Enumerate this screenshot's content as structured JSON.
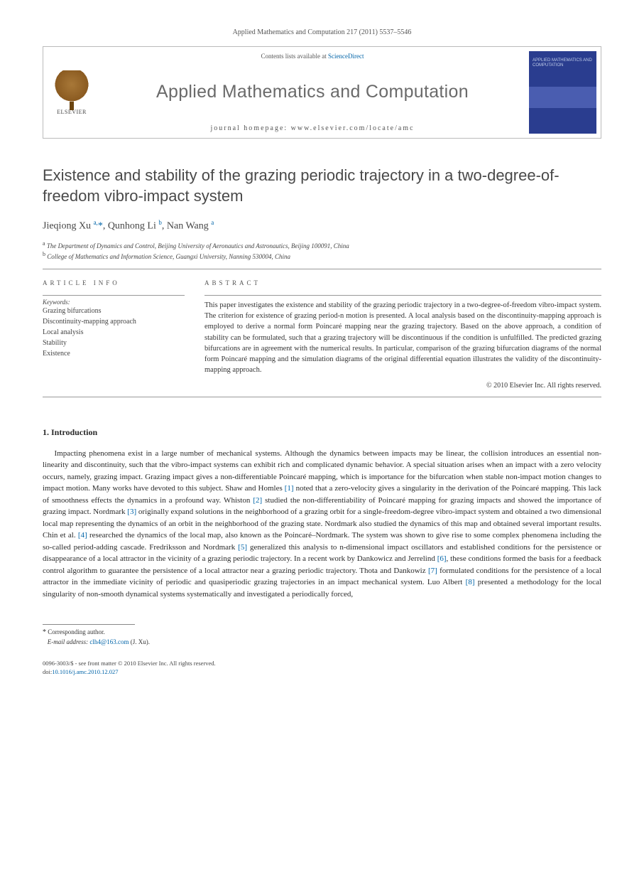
{
  "header": {
    "citation": "Applied Mathematics and Computation 217 (2011) 5537–5546",
    "contents_prefix": "Contents lists available at ",
    "contents_link": "ScienceDirect",
    "journal_name": "Applied Mathematics and Computation",
    "homepage_label": "journal homepage: www.elsevier.com/locate/amc",
    "publisher": "ELSEVIER",
    "cover_text": "APPLIED MATHEMATICS AND COMPUTATION"
  },
  "article": {
    "title": "Existence and stability of the grazing periodic trajectory in a two-degree-of-freedom vibro-impact system",
    "authors_html": "Jieqiong Xu <sup>a,</sup><span class='corr'>*</span>, Qunhong Li <sup>b</sup>, Nan Wang <sup>a</sup>",
    "affiliations": {
      "a": "The Department of Dynamics and Control, Beijing University of Aeronautics and Astronautics, Beijing 100091, China",
      "b": "College of Mathematics and Information Science, Guangxi University, Nanning 530004, China"
    }
  },
  "info": {
    "label": "ARTICLE INFO",
    "keywords_label": "Keywords:",
    "keywords": [
      "Grazing bifurcations",
      "Discontinuity-mapping approach",
      "Local analysis",
      "Stability",
      "Existence"
    ]
  },
  "abstract": {
    "label": "ABSTRACT",
    "text": "This paper investigates the existence and stability of the grazing periodic trajectory in a two-degree-of-freedom vibro-impact system. The criterion for existence of grazing period-n motion is presented. A local analysis based on the discontinuity-mapping approach is employed to derive a normal form Poincaré mapping near the grazing trajectory. Based on the above approach, a condition of stability can be formulated, such that a grazing trajectory will be discontinuous if the condition is unfulfilled. The predicted grazing bifurcations are in agreement with the numerical results. In particular, comparison of the grazing bifurcation diagrams of the normal form Poincaré mapping and the simulation diagrams of the original differential equation illustrates the validity of the discontinuity-mapping approach.",
    "copyright": "© 2010 Elsevier Inc. All rights reserved."
  },
  "intro": {
    "heading": "1. Introduction",
    "body": "Impacting phenomena exist in a large number of mechanical systems. Although the dynamics between impacts may be linear, the collision introduces an essential non-linearity and discontinuity, such that the vibro-impact systems can exhibit rich and complicated dynamic behavior. A special situation arises when an impact with a zero velocity occurs, namely, grazing impact. Grazing impact gives a non-differentiable Poincaré mapping, which is importance for the bifurcation when stable non-impact motion changes to impact motion. Many works have devoted to this subject. Shaw and Homles [1] noted that a zero-velocity gives a singularity in the derivation of the Poincaré mapping. This lack of smoothness effects the dynamics in a profound way. Whiston [2] studied the non-differentiability of Poincaré mapping for grazing impacts and showed the importance of grazing impact. Nordmark [3] originally expand solutions in the neighborhood of a grazing orbit for a single-freedom-degree vibro-impact system and obtained a two dimensional local map representing the dynamics of an orbit in the neighborhood of the grazing state. Nordmark also studied the dynamics of this map and obtained several important results. Chin et al. [4] researched the dynamics of the local map, also known as the Poincaré–Nordmark. The system was shown to give rise to some complex phenomena including the so-called period-adding cascade. Fredriksson and Nordmark [5] generalized this analysis to n-dimensional impact oscillators and established conditions for the persistence or disappearance of a local attractor in the vicinity of a grazing periodic trajectory. In a recent work by Dankowicz and Jerrelind [6], these conditions formed the basis for a feedback control algorithm to guarantee the persistence of a local attractor near a grazing periodic trajectory. Thota and Dankowiz [7] formulated conditions for the persistence of a local attractor in the immediate vicinity of periodic and quasiperiodic grazing trajectories in an impact mechanical system. Luo Albert [8] presented a methodology for the local singularity of non-smooth dynamical systems systematically and investigated a periodically forced,"
  },
  "footnote": {
    "corr_label": "Corresponding author.",
    "email_label": "E-mail address:",
    "email": "clh4@163.com",
    "email_person": "(J. Xu)."
  },
  "bottom": {
    "issn_line": "0096-3003/$ - see front matter © 2010 Elsevier Inc. All rights reserved.",
    "doi_label": "doi:",
    "doi": "10.1016/j.amc.2010.12.027"
  },
  "refs": [
    "[1]",
    "[2]",
    "[3]",
    "[4]",
    "[5]",
    "[6]",
    "[7]",
    "[8]"
  ],
  "colors": {
    "link": "#0064a8",
    "heading_gray": "#494949",
    "body": "#2a2a2a",
    "cover_bg": "#2a3d8f"
  }
}
